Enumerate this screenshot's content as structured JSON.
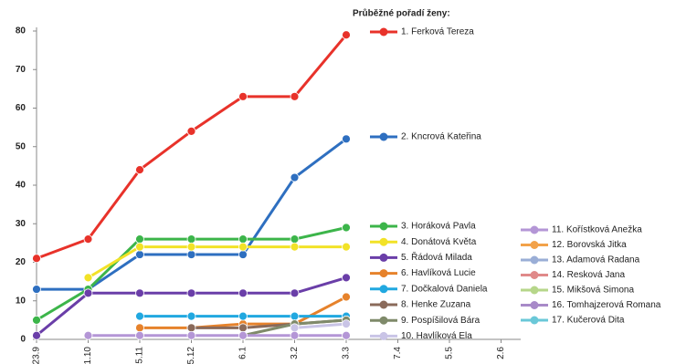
{
  "chart_data": {
    "type": "line",
    "title": "Průběžné pořadí ženy:",
    "categories": [
      "23.9",
      "1.10",
      "5.11",
      "5.12",
      "6.1",
      "3.2",
      "3.3",
      "7.4",
      "5.5",
      "2.6"
    ],
    "ylim": [
      0,
      80
    ],
    "yticks": [
      0,
      10,
      20,
      30,
      40,
      50,
      60,
      70,
      80
    ],
    "grid": false,
    "series": [
      {
        "name": "1. Ferková Tereza",
        "color": "#e8322a",
        "values": [
          21,
          26,
          44,
          54,
          63,
          63,
          79,
          null,
          null,
          null
        ]
      },
      {
        "name": "2. Kncrová Kateřina",
        "color": "#2e6fc0",
        "values": [
          13,
          13,
          22,
          22,
          22,
          42,
          52,
          null,
          null,
          null
        ]
      },
      {
        "name": "3. Horáková Pavla",
        "color": "#3cb54a",
        "values": [
          5,
          13,
          26,
          26,
          26,
          26,
          29,
          null,
          null,
          null
        ]
      },
      {
        "name": "4. Donátová Květa",
        "color": "#f2e227",
        "values": [
          null,
          16,
          24,
          24,
          24,
          24,
          24,
          null,
          null,
          null
        ]
      },
      {
        "name": "5. Řádová Milada",
        "color": "#6a3ea8",
        "values": [
          1,
          12,
          12,
          12,
          12,
          12,
          16,
          null,
          null,
          null
        ]
      },
      {
        "name": "6. Havlíková Lucie",
        "color": "#e6822b",
        "values": [
          null,
          null,
          3,
          3,
          4,
          4,
          11,
          null,
          null,
          null
        ]
      },
      {
        "name": "7. Dočkalová Daniela",
        "color": "#21a8e0",
        "values": [
          null,
          null,
          6,
          6,
          6,
          6,
          6,
          null,
          null,
          null
        ]
      },
      {
        "name": "8. Henke Zuzana",
        "color": "#8a6a5a",
        "values": [
          null,
          null,
          null,
          3,
          3,
          4,
          5,
          null,
          null,
          null
        ]
      },
      {
        "name": "9. Pospíšilová Bára",
        "color": "#7f8a6a",
        "values": [
          null,
          null,
          null,
          null,
          1,
          4,
          5,
          null,
          null,
          null
        ]
      },
      {
        "name": "10. Havlíková Ela",
        "color": "#c9c4e6",
        "values": [
          null,
          null,
          null,
          null,
          null,
          3,
          4,
          null,
          null,
          null
        ]
      },
      {
        "name": "11. Kořístková Anežka",
        "color": "#b496d6",
        "values": [
          null,
          1,
          1,
          1,
          1,
          1,
          1,
          null,
          null,
          null
        ]
      },
      {
        "name": "12. Borovská Jitka",
        "color": "#f2a24a",
        "values": [
          null,
          null,
          null,
          null,
          null,
          null,
          null,
          null,
          null,
          null
        ]
      },
      {
        "name": "13. Adamová Radana",
        "color": "#9aaed6",
        "values": [
          null,
          null,
          null,
          null,
          null,
          null,
          null,
          null,
          null,
          null
        ]
      },
      {
        "name": "14. Resková Jana",
        "color": "#e08a8a",
        "values": [
          null,
          null,
          null,
          null,
          null,
          null,
          null,
          null,
          null,
          null
        ]
      },
      {
        "name": "15. Mikšová Simona",
        "color": "#b6d68a",
        "values": [
          null,
          null,
          null,
          null,
          null,
          null,
          null,
          null,
          null,
          null
        ]
      },
      {
        "name": "16. Tomhajzerová Romana",
        "color": "#a88ac8",
        "values": [
          null,
          null,
          null,
          null,
          null,
          null,
          null,
          null,
          null,
          null
        ]
      },
      {
        "name": "17. Kučerová Dita",
        "color": "#6ac8d8",
        "values": [
          null,
          null,
          null,
          null,
          null,
          null,
          null,
          null,
          null,
          null
        ]
      }
    ]
  }
}
